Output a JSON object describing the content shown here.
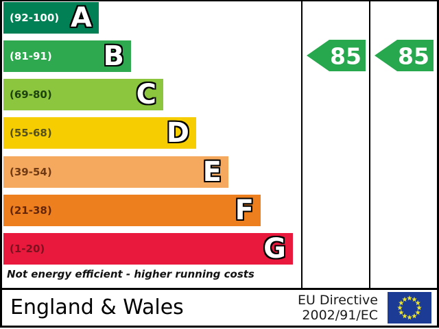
{
  "chart_data": {
    "type": "bar",
    "title": "",
    "bands": [
      {
        "letter": "A",
        "range": "(92-100)",
        "min": 92,
        "max": 100,
        "color": "#008054",
        "range_color": "#ffffff"
      },
      {
        "letter": "B",
        "range": "(81-91)",
        "min": 81,
        "max": 91,
        "color": "#2ea94f",
        "range_color": "#ffffff"
      },
      {
        "letter": "C",
        "range": "(69-80)",
        "min": 69,
        "max": 80,
        "color": "#8cc63f",
        "range_color": "#1d430f"
      },
      {
        "letter": "D",
        "range": "(55-68)",
        "min": 55,
        "max": 68,
        "color": "#f6cd00",
        "range_color": "#55511f"
      },
      {
        "letter": "E",
        "range": "(39-54)",
        "min": 39,
        "max": 54,
        "color": "#f5a95e",
        "range_color": "#713a13"
      },
      {
        "letter": "F",
        "range": "(21-38)",
        "min": 21,
        "max": 38,
        "color": "#ee7f1e",
        "range_color": "#64260b"
      },
      {
        "letter": "G",
        "range": "(1-20)",
        "min": 1,
        "max": 20,
        "color": "#e8193c",
        "range_color": "#7a1220"
      }
    ],
    "footer_note": "Not energy efficient - higher running costs",
    "ratings": [
      {
        "column": "current",
        "value": "85",
        "band": "B",
        "color": "#27a84f"
      },
      {
        "column": "potential",
        "value": "85",
        "band": "B",
        "color": "#27a84f"
      }
    ]
  },
  "footer": {
    "region": "England & Wales",
    "directive_line1": "EU Directive",
    "directive_line2": "2002/91/EC",
    "eu_flag": {
      "background": "#1c3b94",
      "star_color": "#e8e131",
      "star_count": 12
    }
  }
}
